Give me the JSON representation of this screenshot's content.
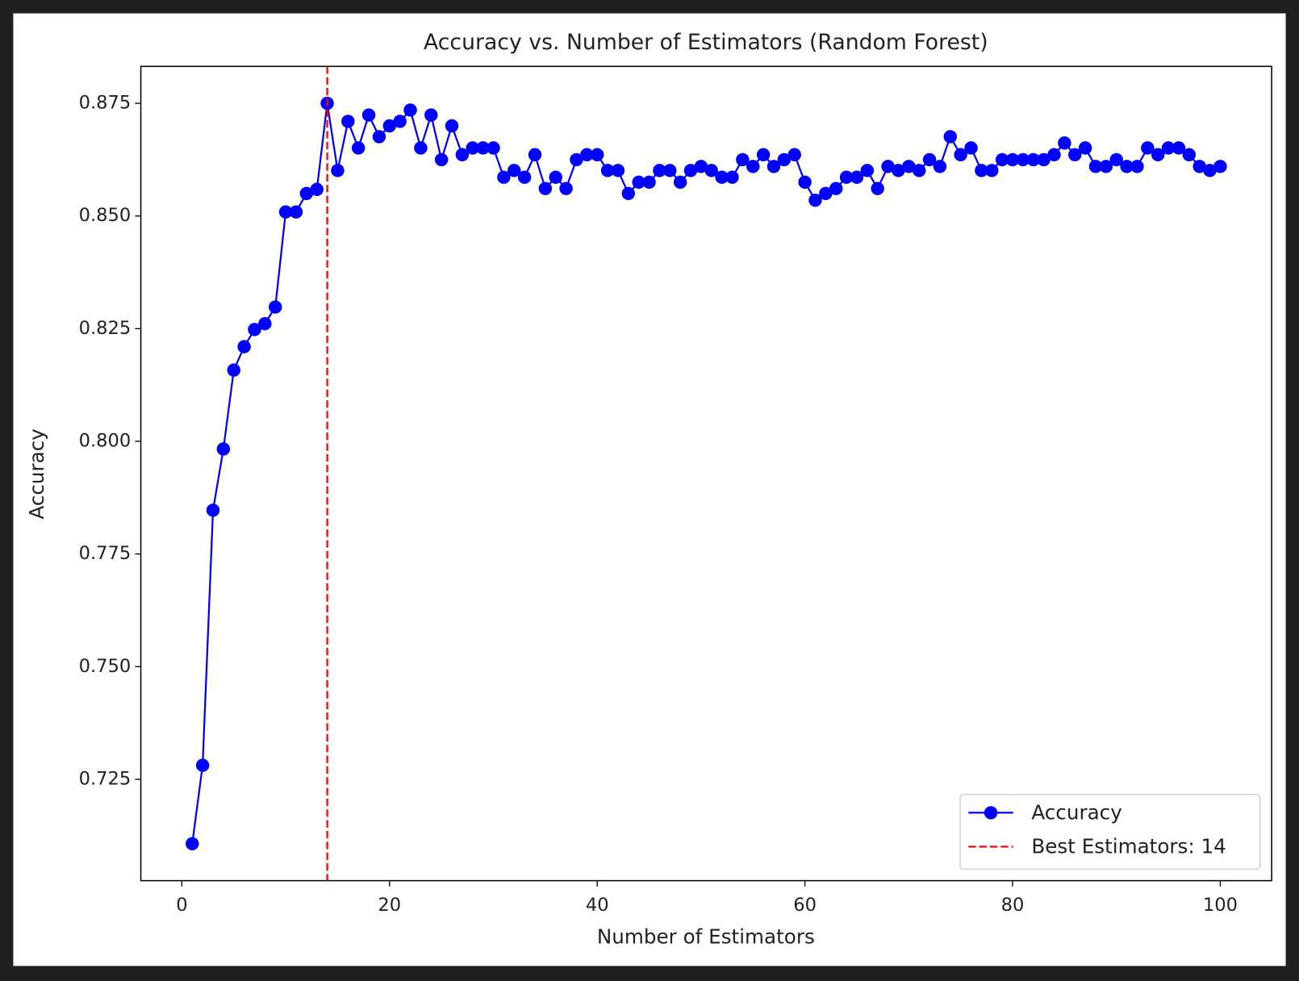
{
  "chart_data": {
    "type": "line",
    "title": "Accuracy vs. Number of Estimators (Random Forest)",
    "xlabel": "Number of Estimators",
    "ylabel": "Accuracy",
    "x": [
      1,
      2,
      3,
      4,
      5,
      6,
      7,
      8,
      9,
      10,
      11,
      12,
      13,
      14,
      15,
      16,
      17,
      18,
      19,
      20,
      21,
      22,
      23,
      24,
      25,
      26,
      27,
      28,
      29,
      30,
      31,
      32,
      33,
      34,
      35,
      36,
      37,
      38,
      39,
      40,
      41,
      42,
      43,
      44,
      45,
      46,
      47,
      48,
      49,
      50,
      51,
      52,
      53,
      54,
      55,
      56,
      57,
      58,
      59,
      60,
      61,
      62,
      63,
      64,
      65,
      66,
      67,
      68,
      69,
      70,
      71,
      72,
      73,
      74,
      75,
      76,
      77,
      78,
      79,
      80,
      81,
      82,
      83,
      84,
      85,
      86,
      87,
      88,
      89,
      90,
      91,
      92,
      93,
      94,
      95,
      96,
      97,
      98,
      99,
      100
    ],
    "series": [
      {
        "name": "Accuracy",
        "color": "#0000ff",
        "marker": "o",
        "values": [
          0.7107,
          0.7281,
          0.7847,
          0.7983,
          0.8158,
          0.821,
          0.8248,
          0.8261,
          0.8298,
          0.8509,
          0.8509,
          0.855,
          0.8559,
          0.875,
          0.8601,
          0.871,
          0.8651,
          0.8724,
          0.8676,
          0.87,
          0.871,
          0.8735,
          0.8651,
          0.8724,
          0.8625,
          0.87,
          0.8636,
          0.8651,
          0.8651,
          0.8651,
          0.8586,
          0.8601,
          0.8586,
          0.8636,
          0.8561,
          0.8586,
          0.8561,
          0.8625,
          0.8636,
          0.8636,
          0.8601,
          0.8601,
          0.855,
          0.8575,
          0.8575,
          0.8601,
          0.8601,
          0.8575,
          0.8601,
          0.861,
          0.8601,
          0.8586,
          0.8586,
          0.8625,
          0.861,
          0.8636,
          0.861,
          0.8625,
          0.8636,
          0.8575,
          0.8535,
          0.855,
          0.8561,
          0.8586,
          0.8586,
          0.8601,
          0.8561,
          0.861,
          0.8601,
          0.861,
          0.8601,
          0.8625,
          0.861,
          0.8676,
          0.8636,
          0.8651,
          0.8601,
          0.8601,
          0.8625,
          0.8625,
          0.8625,
          0.8625,
          0.8625,
          0.8636,
          0.8662,
          0.8636,
          0.8651,
          0.861,
          0.861,
          0.8625,
          0.861,
          0.861,
          0.8651,
          0.8636,
          0.8651,
          0.8651,
          0.8636,
          0.861,
          0.8601,
          0.861
        ]
      }
    ],
    "vline": {
      "x": 14,
      "label": "Best Estimators: 14",
      "color": "#ff0000"
    },
    "xlim": [
      -3.95,
      104.95
    ],
    "xticks": [
      0,
      20,
      40,
      60,
      80,
      100
    ],
    "ylim": [
      0.7025,
      0.8832
    ],
    "yticks": [
      0.725,
      {
        "value": 0.75,
        "label": "0.750"
      },
      0.775,
      {
        "value": 0.8,
        "label": "0.800"
      },
      0.825,
      {
        "value": 0.85,
        "label": "0.850"
      },
      0.875
    ],
    "legend": "lower right"
  }
}
